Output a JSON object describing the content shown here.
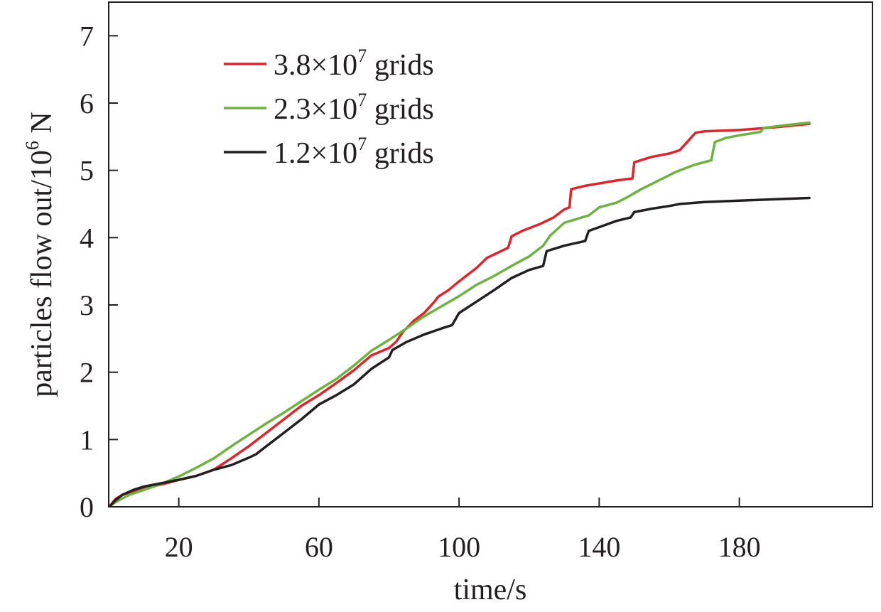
{
  "chart_data": {
    "type": "line",
    "xlabel": "time/s",
    "ylabel": {
      "prefix": "particles flow out/10",
      "superscript": "6",
      "suffix": " N"
    },
    "xlim": [
      0,
      218
    ],
    "ylim": [
      0,
      7.5
    ],
    "x_ticks": [
      20,
      60,
      100,
      140,
      180
    ],
    "y_ticks": [
      0,
      1,
      2,
      3,
      4,
      5,
      6,
      7
    ],
    "grid": false,
    "legend_position": "top-left",
    "series": [
      {
        "name": "3.8×10^7 grids",
        "legend": {
          "prefix": "3.8×10",
          "superscript": "7",
          "suffix": " grids"
        },
        "color": "#e0242b",
        "x": [
          0.5,
          2,
          4,
          7,
          10,
          15,
          20,
          25,
          30,
          35,
          40,
          45,
          50,
          55,
          60,
          65,
          70,
          75,
          80,
          82,
          84,
          87,
          90,
          93,
          94,
          97,
          100,
          105,
          108,
          112,
          114,
          115,
          118,
          123,
          127,
          130,
          131.5,
          132,
          136,
          145,
          149.5,
          150,
          155,
          160,
          163,
          167.5,
          170,
          180,
          190,
          200
        ],
        "y": [
          0.02,
          0.12,
          0.18,
          0.23,
          0.28,
          0.33,
          0.4,
          0.46,
          0.55,
          0.72,
          0.9,
          1.1,
          1.3,
          1.5,
          1.66,
          1.84,
          2.03,
          2.25,
          2.36,
          2.45,
          2.6,
          2.76,
          2.88,
          3.05,
          3.12,
          3.22,
          3.35,
          3.55,
          3.7,
          3.8,
          3.85,
          4.02,
          4.1,
          4.2,
          4.3,
          4.42,
          4.45,
          4.72,
          4.77,
          4.85,
          4.88,
          5.12,
          5.2,
          5.25,
          5.3,
          5.56,
          5.58,
          5.6,
          5.64,
          5.69
        ]
      },
      {
        "name": "2.3×10^7 grids",
        "legend": {
          "prefix": "2.3×10",
          "superscript": "7",
          "suffix": " grids"
        },
        "color": "#6db33f",
        "x": [
          0.5,
          3,
          6,
          10,
          15,
          20,
          25,
          30,
          35,
          40,
          45,
          50,
          55,
          60,
          65,
          70,
          75,
          80,
          85,
          90,
          95,
          100,
          105,
          110,
          115,
          120,
          124,
          126,
          130,
          135,
          137,
          140,
          145,
          148,
          152,
          157,
          162,
          167,
          172,
          173,
          176,
          180,
          186,
          187,
          193,
          200
        ],
        "y": [
          0.02,
          0.1,
          0.18,
          0.25,
          0.34,
          0.45,
          0.58,
          0.72,
          0.9,
          1.07,
          1.24,
          1.4,
          1.57,
          1.74,
          1.9,
          2.1,
          2.32,
          2.48,
          2.65,
          2.83,
          2.98,
          3.13,
          3.3,
          3.43,
          3.58,
          3.72,
          3.88,
          4.03,
          4.22,
          4.3,
          4.33,
          4.45,
          4.52,
          4.6,
          4.72,
          4.85,
          4.98,
          5.08,
          5.15,
          5.42,
          5.48,
          5.52,
          5.57,
          5.63,
          5.67,
          5.71
        ]
      },
      {
        "name": "1.2×10^7 grids",
        "legend": {
          "prefix": "1.2×10",
          "superscript": "7",
          "suffix": " grids"
        },
        "color": "#231f20",
        "x": [
          0.5,
          2,
          4,
          7,
          10,
          15,
          20,
          25,
          30,
          35,
          40,
          42,
          45,
          50,
          55,
          60,
          65,
          70,
          75,
          80,
          81,
          85,
          90,
          95,
          98,
          100,
          105,
          110,
          115,
          120,
          124,
          125,
          130,
          136,
          137,
          145,
          149,
          150,
          155,
          160,
          163,
          170,
          180,
          190,
          200
        ],
        "y": [
          0.02,
          0.1,
          0.18,
          0.25,
          0.3,
          0.35,
          0.4,
          0.46,
          0.55,
          0.62,
          0.73,
          0.78,
          0.9,
          1.1,
          1.3,
          1.52,
          1.66,
          1.82,
          2.05,
          2.22,
          2.33,
          2.45,
          2.56,
          2.65,
          2.7,
          2.88,
          3.05,
          3.22,
          3.4,
          3.52,
          3.58,
          3.8,
          3.88,
          3.95,
          4.1,
          4.25,
          4.3,
          4.38,
          4.43,
          4.47,
          4.5,
          4.53,
          4.55,
          4.57,
          4.59
        ]
      }
    ]
  }
}
